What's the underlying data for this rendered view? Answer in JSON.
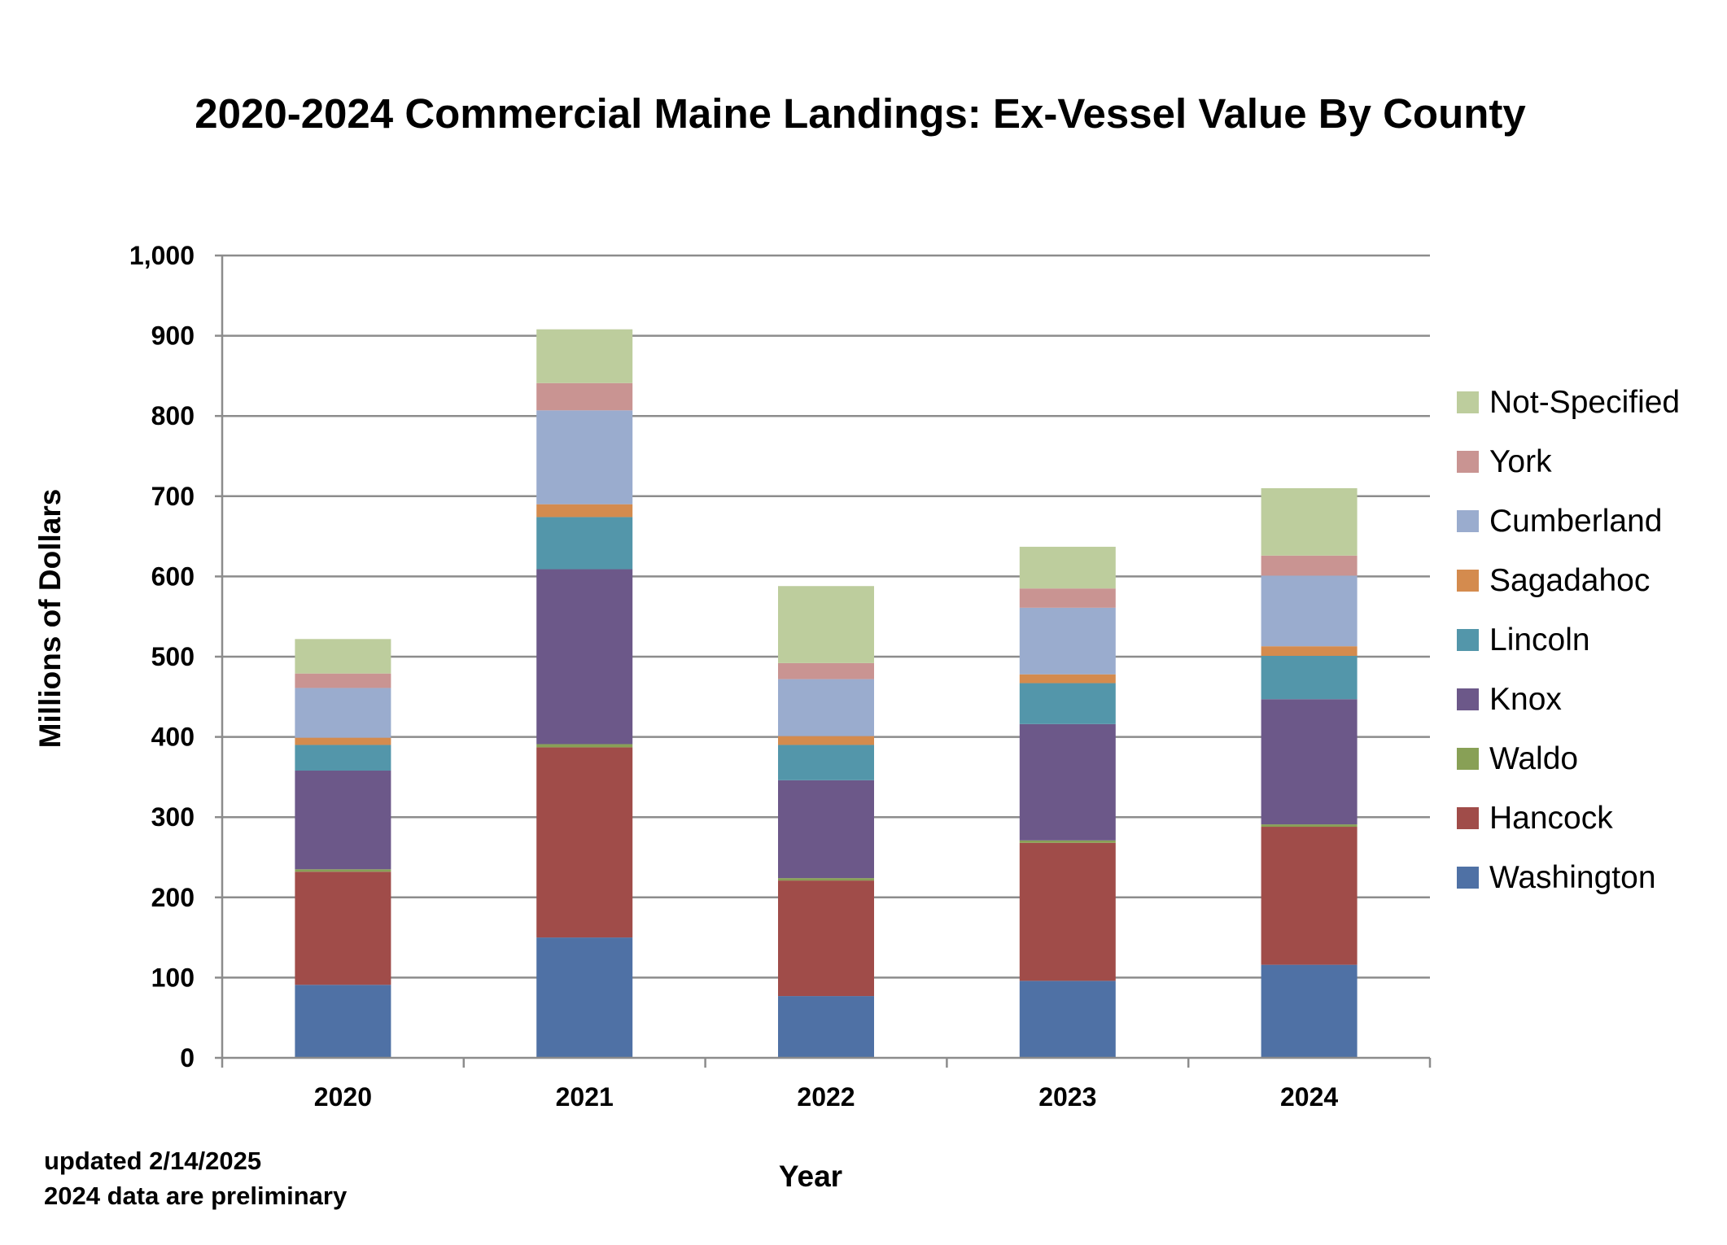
{
  "chart_data": {
    "type": "bar",
    "stacked": true,
    "title": "2020-2024 Commercial Maine Landings: Ex-Vessel Value By County",
    "xlabel": "Year",
    "ylabel": "Millions of Dollars",
    "ylim": [
      0,
      1000
    ],
    "yticks": [
      0,
      100,
      200,
      300,
      400,
      500,
      600,
      700,
      800,
      900,
      1000
    ],
    "ytick_labels": [
      "0",
      "100",
      "200",
      "300",
      "400",
      "500",
      "600",
      "700",
      "800",
      "900",
      "1,000"
    ],
    "grid": true,
    "legend_position": "right",
    "categories": [
      "2020",
      "2021",
      "2022",
      "2023",
      "2024"
    ],
    "series": [
      {
        "name": "Washington",
        "color": "#4F71A5",
        "values": [
          91,
          150,
          77,
          96,
          116
        ]
      },
      {
        "name": "Hancock",
        "color": "#A04C49",
        "values": [
          141,
          237,
          144,
          172,
          172
        ]
      },
      {
        "name": "Waldo",
        "color": "#88A056",
        "values": [
          3,
          4,
          3,
          3,
          3
        ]
      },
      {
        "name": "Knox",
        "color": "#6C5889",
        "values": [
          123,
          218,
          122,
          145,
          156
        ]
      },
      {
        "name": "Lincoln",
        "color": "#5396AA",
        "values": [
          32,
          65,
          44,
          51,
          54
        ]
      },
      {
        "name": "Sagadahoc",
        "color": "#D48B4E",
        "values": [
          9,
          16,
          11,
          11,
          12
        ]
      },
      {
        "name": "Cumberland",
        "color": "#9AACCE",
        "values": [
          62,
          117,
          71,
          83,
          88
        ]
      },
      {
        "name": "York",
        "color": "#C99492",
        "values": [
          18,
          34,
          20,
          24,
          25
        ]
      },
      {
        "name": "Not-Specified",
        "color": "#BDCD9D",
        "values": [
          43,
          67,
          96,
          52,
          84
        ]
      }
    ]
  },
  "notes": {
    "updated": "updated 2/14/2025",
    "preliminary": "2024 data are preliminary"
  }
}
